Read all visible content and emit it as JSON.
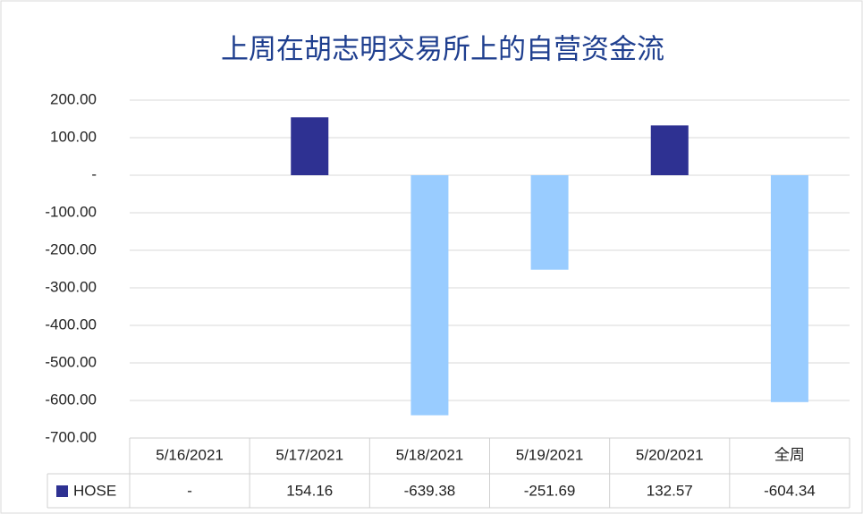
{
  "chart_data": {
    "type": "bar",
    "title": "上周在胡志明交易所上的自营资金流",
    "categories": [
      "5/16/2021",
      "5/17/2021",
      "5/18/2021",
      "5/19/2021",
      "5/20/2021",
      "全周"
    ],
    "series": [
      {
        "name": "HOSE",
        "color": "#2e3192",
        "values": [
          0,
          154.16,
          -639.38,
          -251.69,
          132.57,
          -604.34
        ],
        "value_labels": [
          "-",
          "154.16",
          "-639.38",
          "-251.69",
          "132.57",
          "-604.34"
        ]
      }
    ],
    "negative_color": "#99ccff",
    "ylim": [
      -700,
      200
    ],
    "yticks": [
      {
        "value": 200,
        "label": "200.00"
      },
      {
        "value": 100,
        "label": "100.00"
      },
      {
        "value": 0,
        "label": "-"
      },
      {
        "value": -100,
        "label": "-100.00"
      },
      {
        "value": -200,
        "label": "-200.00"
      },
      {
        "value": -300,
        "label": "-300.00"
      },
      {
        "value": -400,
        "label": "-400.00"
      },
      {
        "value": -500,
        "label": "-500.00"
      },
      {
        "value": -600,
        "label": "-600.00"
      },
      {
        "value": -700,
        "label": "-700.00"
      }
    ],
    "grid": true
  }
}
